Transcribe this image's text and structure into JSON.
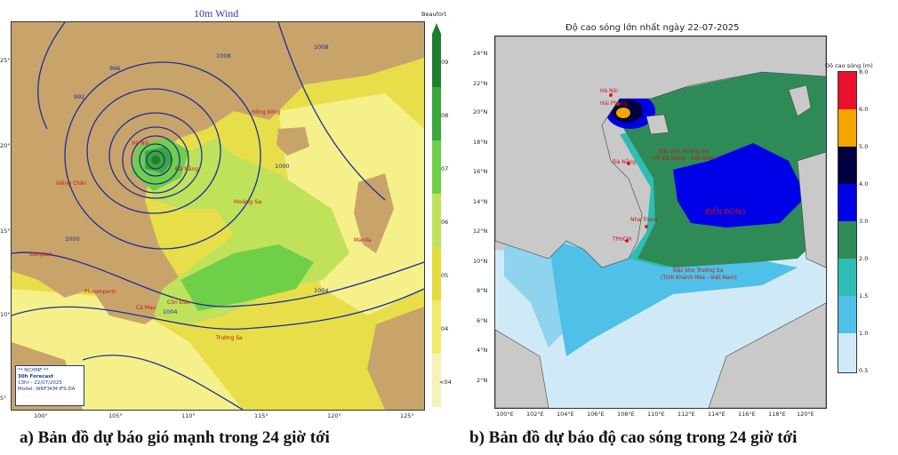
{
  "panel_a": {
    "title": "10m Wind",
    "caption": "a) Bản đồ dự báo gió mạnh trong 24 giờ tới",
    "colorbar_label": "Beaufort",
    "colorbar_ticks": [
      "09",
      "08",
      "07",
      "06",
      "05",
      "04",
      "<04"
    ],
    "lon_ticks": [
      "100°",
      "105°",
      "110°",
      "115°",
      "120°",
      "125°"
    ],
    "lat_ticks": [
      "25°",
      "20°",
      "15°",
      "10°",
      "5°"
    ],
    "isobar_labels": [
      "996",
      "992",
      "1000",
      "1004",
      "1004",
      "1000",
      "1008",
      "1008"
    ],
    "logo": {
      "agency": "** NCHMF **",
      "forecast": "30h Forecast",
      "time": "13hr - 22/07/2025",
      "model": "Model: WRF3KM-IFS-DA"
    },
    "place_labels": [
      "Hà Nội",
      "Viêng Chăn",
      "Bangkok",
      "Phnompenh",
      "Cà Mau",
      "Côn Đảo",
      "Trường Sa",
      "Hoàng Sa",
      "Đà Nẵng",
      "Manila",
      "Hồng Kông"
    ],
    "colors": {
      "b4": "#f6f08a",
      "b5": "#e4dc3c",
      "b6": "#bfe25a",
      "b7": "#6fcf48",
      "b8": "#3aa83a",
      "b9": "#1e7e2e",
      "land": "#c9a46a",
      "isobar": "#1a2f9e"
    }
  },
  "panel_b": {
    "title": "Độ cao sóng lớn nhất ngày 22-07-2025",
    "caption": "b) Bản đồ dự báo độ cao sóng trong 24 giờ tới",
    "colorbar_label": "Độ cao sóng (m)",
    "colorbar_ticks": [
      "8.0",
      "6.0",
      "5.0",
      "4.0",
      "3.0",
      "2.0",
      "1.5",
      "1.0",
      "0.5"
    ],
    "lon_ticks": [
      "100°E",
      "102°E",
      "104°E",
      "106°E",
      "108°E",
      "110°E",
      "112°E",
      "114°E",
      "116°E",
      "118°E",
      "120°E"
    ],
    "lat_ticks": [
      "24°N",
      "22°N",
      "20°N",
      "18°N",
      "16°N",
      "14°N",
      "12°N",
      "10°N",
      "8°N",
      "6°N",
      "4°N",
      "2°N"
    ],
    "place_labels": {
      "hanoi": "Hà Nội",
      "haiphong": "Hải Phòng",
      "danang": "Đà Nẵng",
      "nhatrang": "Nha Trang",
      "tphcm": "TPHCM",
      "hoangsa_1": "Đặc khu Hoàng Sa",
      "hoangsa_2": "(TP Đà Nẵng - Việt Nam)",
      "truongsa_1": "Đặc khu Trường Sa",
      "truongsa_2": "(Tỉnh Khánh Hòa - Việt Nam)",
      "biendong": "BIỂN ĐÔNG"
    },
    "colors": {
      "h05": "#cfeaf6",
      "h10": "#8fd3ef",
      "h15": "#4fc0e8",
      "h20": "#2fbcb4",
      "h30": "#2e8b57",
      "h40": "#0000e6",
      "h50": "#000040",
      "h60": "#f5a400",
      "h80": "#e8122e",
      "land": "#c9c9c9"
    }
  }
}
